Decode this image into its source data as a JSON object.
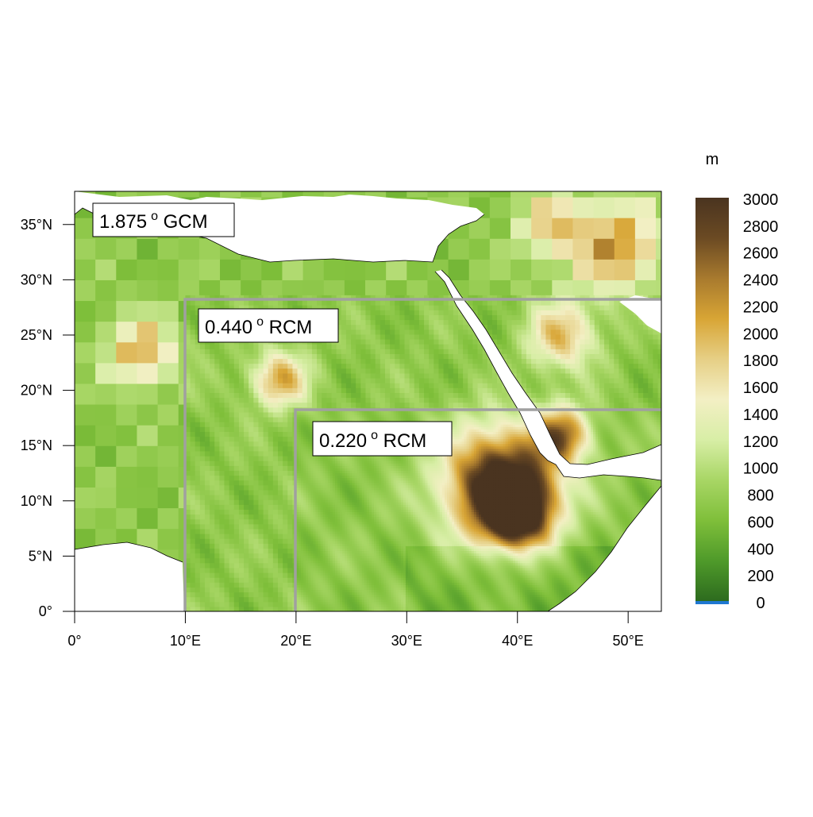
{
  "map": {
    "units": "m",
    "x_ticks": [
      "0°",
      "10°E",
      "20°E",
      "30°E",
      "40°E",
      "50°E"
    ],
    "y_ticks": [
      "0°",
      "5°N",
      "10°N",
      "15°N",
      "20°N",
      "25°N",
      "30°N",
      "35°N"
    ],
    "lon_range": [
      0,
      53
    ],
    "lat_range": [
      0,
      38
    ],
    "domains": [
      {
        "label_value": "1.875",
        "label_suffix": " GCM",
        "resolution_deg": 1.875,
        "lon_min": 0,
        "lat_min": 0,
        "lon_max": 53,
        "lat_max": 38
      },
      {
        "label_value": "0.440",
        "label_suffix": " RCM",
        "resolution_deg": 0.44,
        "lon_min": 10,
        "lat_min": 0,
        "lon_max": 53,
        "lat_max": 28.2
      },
      {
        "label_value": "0.220",
        "label_suffix": " RCM",
        "resolution_deg": 0.22,
        "lon_min": 20,
        "lat_min": 0,
        "lon_max": 53,
        "lat_max": 18.2
      }
    ],
    "degree_symbol": "o"
  },
  "colorbar": {
    "ticks": [
      "3000",
      "2800",
      "2600",
      "2400",
      "2200",
      "2000",
      "1800",
      "1600",
      "1400",
      "1200",
      "1000",
      "800",
      "600",
      "400",
      "200",
      "0"
    ],
    "range": [
      0,
      3000
    ],
    "colors": [
      "#2d6b1e",
      "#4f9a2a",
      "#7fbf3a",
      "#a8d665",
      "#d8eea6",
      "#f3efc4",
      "#e6cf85",
      "#d8a535",
      "#a87a2e",
      "#6b4a23",
      "#4a3420"
    ],
    "ocean_color": "#1f78d1"
  },
  "colors": {
    "frame": "#000000",
    "domain_box": "#a0a0a0",
    "sea": "#ffffff"
  }
}
